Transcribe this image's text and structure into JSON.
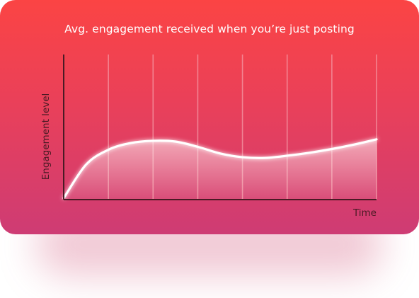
{
  "chart_data": {
    "type": "area",
    "title": "Avg. engagement received when you’re just posting",
    "xlabel": "Time",
    "ylabel": "Engagement level",
    "grid": true,
    "x": [
      0,
      0.5,
      1,
      1.5,
      2,
      2.5,
      3,
      3.5,
      4,
      4.5,
      5,
      5.5,
      6,
      6.5,
      7
    ],
    "values": [
      0.02,
      0.47,
      0.67,
      0.76,
      0.79,
      0.78,
      0.71,
      0.62,
      0.57,
      0.56,
      0.59,
      0.63,
      0.68,
      0.74,
      0.81
    ],
    "xlim": [
      0,
      7
    ],
    "ylim": [
      0,
      1.95
    ]
  },
  "colors": {
    "background_top": "#fb4444",
    "background_bottom": "#ce3c74",
    "line": "#ffffff",
    "axis": "#4a1a24",
    "grid": "#f49aa6"
  }
}
